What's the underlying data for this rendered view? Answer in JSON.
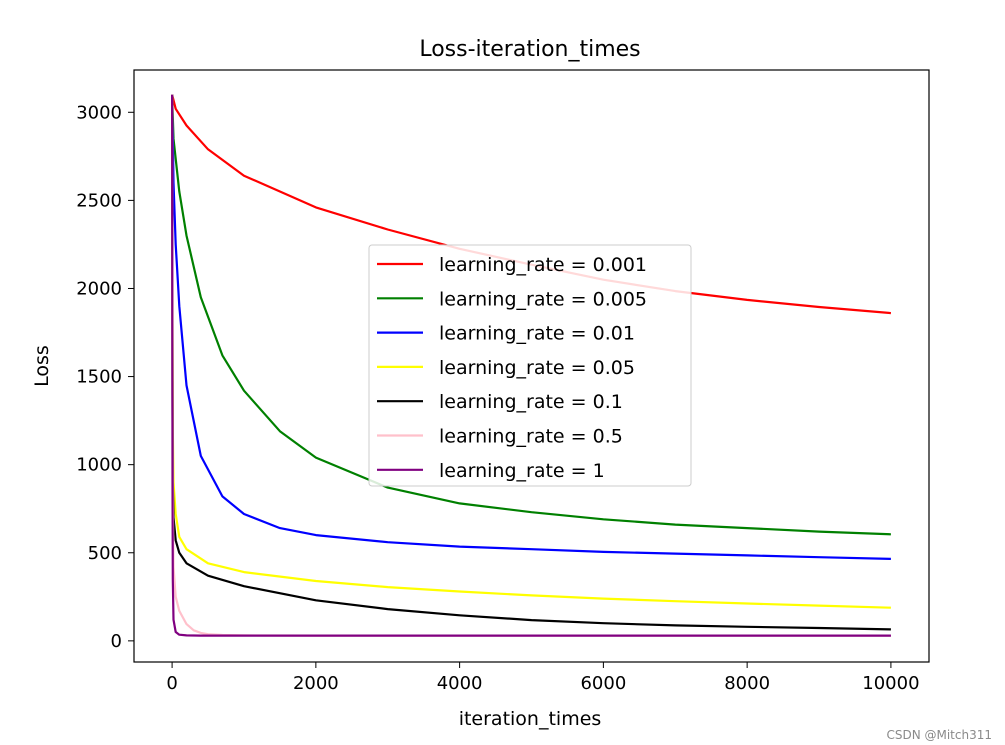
{
  "chart_data": {
    "type": "line",
    "title": "Loss-iteration_times",
    "xlabel": "iteration_times",
    "ylabel": "Loss",
    "xlim": [
      -530,
      10530
    ],
    "ylim": [
      -120,
      3240
    ],
    "xticks": [
      0,
      2000,
      4000,
      6000,
      8000,
      10000
    ],
    "xtick_labels": [
      "0",
      "2000",
      "4000",
      "6000",
      "8000",
      "10000"
    ],
    "yticks": [
      0,
      500,
      1000,
      1500,
      2000,
      2500,
      3000
    ],
    "ytick_labels": [
      "0",
      "500",
      "1000",
      "1500",
      "2000",
      "2500",
      "3000"
    ],
    "grid": false,
    "legend_position": "center",
    "series": [
      {
        "name": "learning_rate = 0.001",
        "color": "#ff0000",
        "x": [
          0,
          50,
          200,
          500,
          1000,
          2000,
          3000,
          4000,
          5000,
          6000,
          7000,
          8000,
          9000,
          10000
        ],
        "y": [
          3100,
          3020,
          2925,
          2790,
          2640,
          2460,
          2335,
          2225,
          2135,
          2050,
          1985,
          1935,
          1895,
          1860
        ]
      },
      {
        "name": "learning_rate = 0.005",
        "color": "#008000",
        "x": [
          0,
          20,
          100,
          200,
          400,
          700,
          1000,
          1500,
          2000,
          3000,
          4000,
          5000,
          6000,
          7000,
          8000,
          9000,
          10000
        ],
        "y": [
          3100,
          2850,
          2550,
          2300,
          1950,
          1620,
          1420,
          1190,
          1040,
          870,
          780,
          730,
          690,
          660,
          640,
          620,
          605
        ]
      },
      {
        "name": "learning_rate = 0.01",
        "color": "#0000ff",
        "x": [
          0,
          20,
          50,
          100,
          200,
          400,
          700,
          1000,
          1500,
          2000,
          3000,
          4000,
          5000,
          6000,
          7000,
          8000,
          9000,
          10000
        ],
        "y": [
          3100,
          2600,
          2250,
          1900,
          1450,
          1050,
          820,
          720,
          640,
          600,
          560,
          535,
          520,
          505,
          495,
          485,
          475,
          465
        ]
      },
      {
        "name": "learning_rate = 0.05",
        "color": "#ffff00",
        "x": [
          0,
          5,
          10,
          20,
          50,
          100,
          200,
          500,
          1000,
          2000,
          3000,
          4000,
          5000,
          6000,
          7000,
          8000,
          9000,
          10000
        ],
        "y": [
          3100,
          1800,
          1200,
          900,
          720,
          590,
          520,
          440,
          390,
          340,
          305,
          280,
          258,
          240,
          225,
          212,
          200,
          188
        ]
      },
      {
        "name": "learning_rate = 0.1",
        "color": "#000000",
        "x": [
          0,
          5,
          10,
          20,
          50,
          100,
          200,
          500,
          1000,
          2000,
          3000,
          4000,
          5000,
          6000,
          7000,
          8000,
          9000,
          10000
        ],
        "y": [
          3100,
          1400,
          900,
          700,
          570,
          500,
          440,
          370,
          310,
          230,
          180,
          145,
          118,
          100,
          88,
          80,
          73,
          65
        ]
      },
      {
        "name": "learning_rate = 0.5",
        "color": "#ffc0cb",
        "x": [
          0,
          5,
          10,
          20,
          50,
          100,
          200,
          300,
          400,
          500,
          700,
          1000,
          2000,
          4000,
          6000,
          8000,
          10000
        ],
        "y": [
          3100,
          1500,
          800,
          420,
          250,
          170,
          95,
          60,
          45,
          38,
          33,
          31,
          30,
          30,
          30,
          30,
          30
        ]
      },
      {
        "name": "learning_rate = 1",
        "color": "#800080",
        "x": [
          0,
          3,
          6,
          10,
          20,
          50,
          100,
          200,
          400,
          1000,
          2000,
          4000,
          6000,
          8000,
          10000
        ],
        "y": [
          3100,
          2000,
          900,
          350,
          120,
          50,
          35,
          31,
          30,
          30,
          30,
          30,
          30,
          30,
          30
        ]
      }
    ]
  },
  "watermark": "CSDN @Mitch311"
}
